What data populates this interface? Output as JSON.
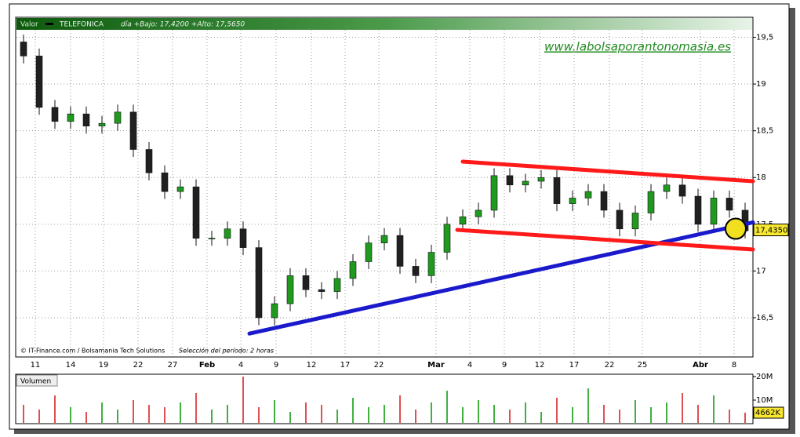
{
  "chart_data": {
    "type": "candlestick",
    "header": {
      "field": "Valor",
      "name": "TELEFONICA",
      "range": "día +Bajo: 17,4200 +Alto: 17,5650"
    },
    "watermark": "www.labolsaporantonomasia.es",
    "credit": "© IT-Finance.com / Bolsamania Tech Solutions",
    "period": "Selección del período: 2 horas",
    "up_color": "#1f9a1f",
    "down_color": "#202020",
    "xlim": [
      -0.5,
      46.5
    ],
    "xticks": [
      {
        "value": 0.75,
        "label": "11"
      },
      {
        "value": 3,
        "label": "14"
      },
      {
        "value": 5.1,
        "label": "19"
      },
      {
        "value": 7.3,
        "label": "22"
      },
      {
        "value": 9.5,
        "label": "27"
      },
      {
        "value": 11.7,
        "label": "Feb"
      },
      {
        "value": 13.85,
        "label": "4"
      },
      {
        "value": 16.1,
        "label": "9"
      },
      {
        "value": 18.35,
        "label": "12"
      },
      {
        "value": 20.5,
        "label": "17"
      },
      {
        "value": 22.65,
        "label": "22"
      },
      {
        "value": 26.3,
        "label": "Mar"
      },
      {
        "value": 28.45,
        "label": "4"
      },
      {
        "value": 30.65,
        "label": "9"
      },
      {
        "value": 32.9,
        "label": "12"
      },
      {
        "value": 35.1,
        "label": "17"
      },
      {
        "value": 37.35,
        "label": "22"
      },
      {
        "value": 39.45,
        "label": "25"
      },
      {
        "value": 43.15,
        "label": "Abr"
      },
      {
        "value": 45.3,
        "label": "8"
      }
    ],
    "ylim": [
      16.08,
      19.58
    ],
    "yticks": [
      {
        "value": 16.5,
        "label": "16,5"
      },
      {
        "value": 17,
        "label": "17"
      },
      {
        "value": 17.5,
        "label": "17,5"
      },
      {
        "value": 18,
        "label": "18"
      },
      {
        "value": 18.5,
        "label": "18,5"
      },
      {
        "value": 19,
        "label": "19"
      },
      {
        "value": 19.5,
        "label": "19,5"
      }
    ],
    "grid": true,
    "open": [
      19.45,
      19.3,
      18.75,
      18.6,
      18.68,
      18.55,
      18.58,
      18.7,
      18.3,
      18.05,
      17.85,
      17.9,
      17.35,
      17.35,
      17.45,
      17.25,
      16.5,
      16.65,
      16.95,
      16.8,
      16.78,
      16.92,
      17.1,
      17.3,
      17.38,
      17.05,
      16.95,
      17.2,
      17.5,
      17.58,
      17.65,
      18.02,
      17.92,
      17.96,
      18.0,
      17.72,
      17.78,
      17.85,
      17.65,
      17.45,
      17.62,
      17.85,
      17.92,
      17.8,
      17.5,
      17.78,
      17.65
    ],
    "high": [
      19.53,
      19.38,
      18.83,
      18.76,
      18.76,
      18.66,
      18.78,
      18.78,
      18.38,
      18.13,
      17.98,
      17.98,
      17.43,
      17.53,
      17.53,
      17.33,
      16.73,
      17.03,
      17.03,
      16.88,
      17.0,
      17.18,
      17.38,
      17.46,
      17.46,
      17.13,
      17.28,
      17.58,
      17.66,
      17.73,
      18.1,
      18.1,
      18.04,
      18.08,
      18.08,
      17.86,
      17.93,
      17.93,
      17.73,
      17.7,
      17.93,
      18.0,
      18.0,
      17.88,
      17.86,
      17.86,
      17.73
    ],
    "low": [
      19.22,
      18.67,
      18.52,
      18.52,
      18.47,
      18.47,
      18.5,
      18.22,
      17.97,
      17.77,
      17.77,
      17.27,
      17.27,
      17.27,
      17.17,
      16.42,
      16.42,
      16.57,
      16.72,
      16.7,
      16.7,
      16.84,
      17.02,
      17.22,
      16.97,
      16.87,
      16.87,
      17.12,
      17.42,
      17.5,
      17.57,
      17.84,
      17.84,
      17.88,
      17.64,
      17.64,
      17.7,
      17.57,
      17.37,
      17.37,
      17.54,
      17.77,
      17.72,
      17.42,
      17.42,
      17.57,
      17.35
    ],
    "close": [
      19.3,
      18.75,
      18.6,
      18.68,
      18.55,
      18.58,
      18.7,
      18.3,
      18.05,
      17.85,
      17.9,
      17.35,
      17.35,
      17.45,
      17.25,
      16.5,
      16.65,
      16.95,
      16.8,
      16.78,
      16.92,
      17.1,
      17.3,
      17.38,
      17.05,
      16.95,
      17.2,
      17.5,
      17.58,
      17.65,
      18.02,
      17.92,
      17.96,
      18.0,
      17.72,
      17.78,
      17.85,
      17.65,
      17.45,
      17.62,
      17.85,
      17.92,
      17.8,
      17.5,
      17.78,
      17.65,
      17.43
    ],
    "last_value": {
      "value": 17.435,
      "label": "17,4350"
    },
    "lines": [
      {
        "color": "#1a1acc",
        "x": [
          14.4,
          46.5
        ],
        "y": [
          16.33,
          17.52
        ]
      },
      {
        "color": "#ff1a1a",
        "x": [
          28.0,
          46.5
        ],
        "y": [
          18.17,
          17.96
        ]
      },
      {
        "color": "#ff1a1a",
        "x": [
          27.65,
          46.5
        ],
        "y": [
          17.44,
          17.23
        ]
      }
    ],
    "volume": {
      "label": "Volumen",
      "color": "#e05050",
      "up_color": "#40b040",
      "ylim": [
        0,
        21
      ],
      "yticks": [
        {
          "value": 10,
          "label": "10M"
        },
        {
          "value": 20,
          "label": "20M"
        }
      ],
      "values": [
        8,
        6,
        12,
        7,
        5,
        9,
        6,
        10,
        8,
        7,
        9,
        13,
        6,
        8,
        20,
        7,
        10,
        5,
        9,
        8,
        6,
        11,
        7,
        8,
        12,
        6,
        9,
        14,
        7,
        10,
        8,
        6,
        9,
        5,
        11,
        7,
        15,
        8,
        6,
        10,
        7,
        9,
        13,
        8,
        12,
        6,
        4.662
      ],
      "last_value": {
        "value": 4.662,
        "label": "4662K"
      }
    }
  }
}
